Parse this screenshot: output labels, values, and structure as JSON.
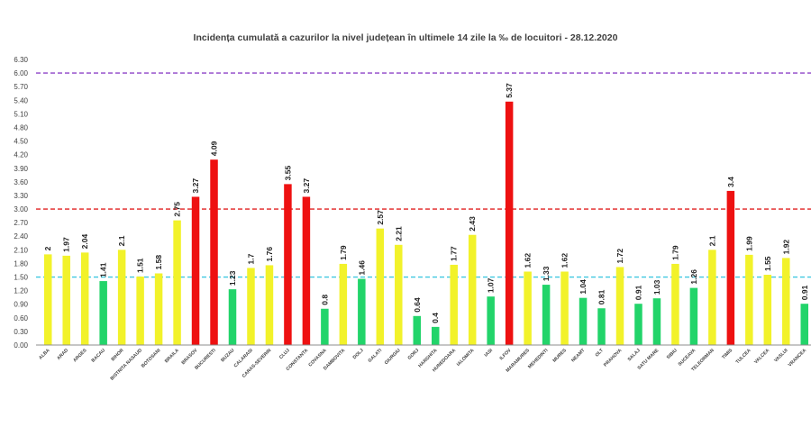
{
  "chart_data": {
    "type": "bar",
    "title": "Incidența cumulată a cazurilor la nivel județean în ultimele 14 zile la ‰ de locuitori - 28.12.2020",
    "xlabel": "",
    "ylabel": "",
    "ylim": [
      0,
      6.3
    ],
    "yticks": [
      "0.00",
      "0.30",
      "0.60",
      "0.90",
      "1.20",
      "1.50",
      "1.80",
      "2.10",
      "2.40",
      "2.70",
      "3.00",
      "3.30",
      "3.60",
      "3.90",
      "4.20",
      "4.50",
      "4.80",
      "5.10",
      "5.40",
      "5.70",
      "6.00",
      "6.30"
    ],
    "grid": false,
    "legend": "none",
    "categories": [
      "ALBA",
      "ARAD",
      "ARGES",
      "BACAU",
      "BIHOR",
      "BISTRITA NASAUD",
      "BOTOSANI",
      "BRAILA",
      "BRASOV",
      "BUCURESTI",
      "BUZAU",
      "CALARASI",
      "CARAS-SEVERIN",
      "CLUJ",
      "CONSTANTA",
      "COVASNA",
      "DAMBOVITA",
      "DOLJ",
      "GALATI",
      "GIURGIU",
      "GORJ",
      "HARGHITA",
      "HUNEDOARA",
      "IALOMITA",
      "IASI",
      "ILFOV",
      "MARAMURES",
      "MEHEDINTI",
      "MURES",
      "NEAMT",
      "OLT",
      "PRAHOVA",
      "SALAJ",
      "SATU MARE",
      "SIBIU",
      "SUCEAVA",
      "TELEORMAN",
      "TIMIS",
      "TULCEA",
      "VALCEA",
      "VASLUI",
      "VRANCEA"
    ],
    "values": [
      2,
      1.97,
      2.04,
      1.41,
      2.1,
      1.51,
      1.58,
      2.75,
      3.27,
      4.09,
      1.23,
      1.7,
      1.76,
      3.55,
      3.27,
      0.8,
      1.79,
      1.46,
      2.57,
      2.21,
      0.64,
      0.4,
      1.77,
      2.43,
      1.07,
      5.37,
      1.62,
      1.33,
      1.62,
      1.04,
      0.81,
      1.72,
      0.91,
      1.03,
      1.79,
      1.26,
      2.1,
      3.4,
      1.99,
      1.55,
      1.92,
      0.91
    ],
    "value_labels": [
      "2",
      "1.97",
      "2.04",
      "1.41",
      "2.1",
      "1.51",
      "1.58",
      "2.75",
      "3.27",
      "4.09",
      "1.23",
      "1.7",
      "1.76",
      "3.55",
      "3.27",
      "0.8",
      "1.79",
      "1.46",
      "2.57",
      "2.21",
      "0.64",
      "0.4",
      "1.77",
      "2.43",
      "1.07",
      "5.37",
      "1.62",
      "1.33",
      "1.62",
      "1.04",
      "0.81",
      "1.72",
      "0.91",
      "1.03",
      "1.79",
      "1.26",
      "2.1",
      "3.4",
      "1.99",
      "1.55",
      "1.92",
      "0.91"
    ],
    "thresholds": [
      {
        "value": 1.5,
        "color": "#3fc8e0",
        "style": "dashed"
      },
      {
        "value": 3.0,
        "color": "#e02020",
        "style": "dashed"
      },
      {
        "value": 6.0,
        "color": "#8e44c8",
        "style": "dashed"
      }
    ],
    "colors": {
      "green": "#22d46a",
      "yellow": "#f2f22a",
      "red": "#ee1111",
      "axis": "#8c8c8c"
    }
  }
}
